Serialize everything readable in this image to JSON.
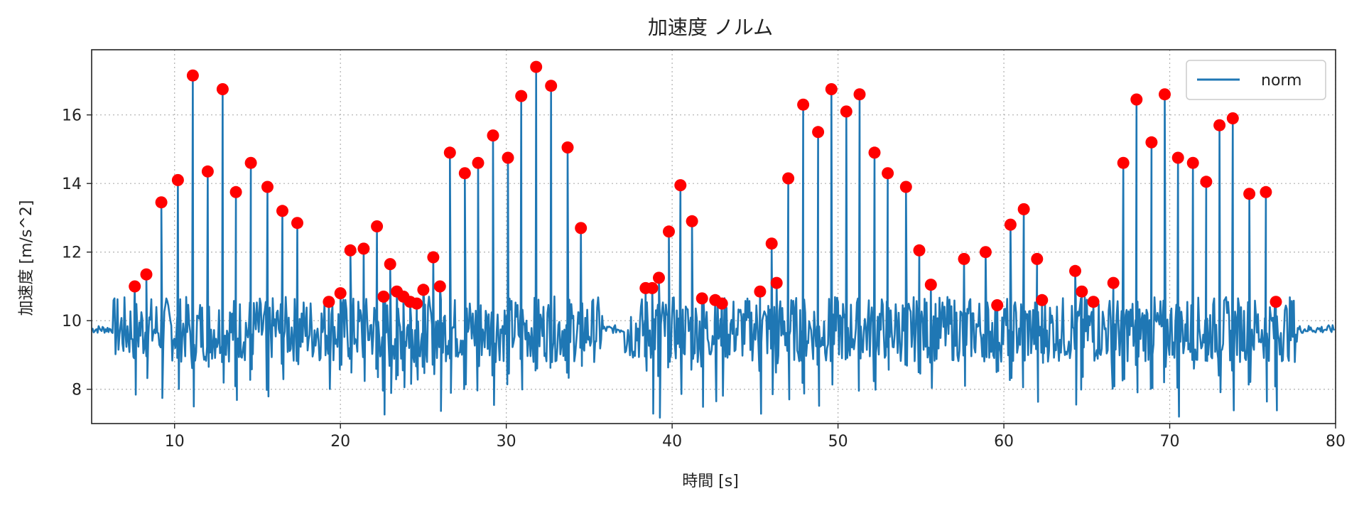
{
  "chart_data": {
    "type": "line",
    "title": "加速度 ノルム",
    "xlabel": "時間 [s]",
    "ylabel": "加速度 [m/s^2]",
    "xlim": [
      5,
      80
    ],
    "ylim": [
      7,
      17.9
    ],
    "xticks": [
      10,
      20,
      30,
      40,
      50,
      60,
      70,
      80
    ],
    "yticks": [
      8,
      10,
      12,
      14,
      16
    ],
    "grid": true,
    "legend_position": "top-right",
    "series": [
      {
        "name": "norm",
        "color": "#1f77b4",
        "style": "line",
        "baseline": 9.75,
        "noise_amplitude": 0.12
      },
      {
        "color": "#ff0000",
        "style": "markers",
        "points": [
          [
            7.6,
            11.0
          ],
          [
            8.3,
            11.35
          ],
          [
            9.2,
            13.45
          ],
          [
            10.2,
            14.1
          ],
          [
            11.1,
            17.15
          ],
          [
            12.0,
            14.35
          ],
          [
            12.9,
            16.75
          ],
          [
            13.7,
            13.75
          ],
          [
            14.6,
            14.6
          ],
          [
            15.6,
            13.9
          ],
          [
            16.5,
            13.2
          ],
          [
            17.4,
            12.85
          ],
          [
            19.3,
            10.55
          ],
          [
            20.0,
            10.8
          ],
          [
            20.6,
            12.05
          ],
          [
            21.4,
            12.1
          ],
          [
            22.2,
            12.75
          ],
          [
            22.6,
            10.7
          ],
          [
            23.0,
            11.65
          ],
          [
            23.4,
            10.85
          ],
          [
            23.8,
            10.7
          ],
          [
            24.2,
            10.55
          ],
          [
            24.6,
            10.5
          ],
          [
            25.0,
            10.9
          ],
          [
            25.6,
            11.85
          ],
          [
            26.0,
            11.0
          ],
          [
            26.6,
            14.9
          ],
          [
            27.5,
            14.3
          ],
          [
            28.3,
            14.6
          ],
          [
            29.2,
            15.4
          ],
          [
            30.1,
            14.75
          ],
          [
            30.9,
            16.55
          ],
          [
            31.8,
            17.4
          ],
          [
            32.7,
            16.85
          ],
          [
            33.7,
            15.05
          ],
          [
            34.5,
            12.7
          ],
          [
            38.4,
            10.95
          ],
          [
            38.8,
            10.95
          ],
          [
            39.2,
            11.25
          ],
          [
            39.8,
            12.6
          ],
          [
            40.5,
            13.95
          ],
          [
            41.2,
            12.9
          ],
          [
            41.8,
            10.65
          ],
          [
            42.6,
            10.6
          ],
          [
            43.0,
            10.5
          ],
          [
            45.3,
            10.85
          ],
          [
            46.0,
            12.25
          ],
          [
            46.3,
            11.1
          ],
          [
            47.0,
            14.15
          ],
          [
            47.9,
            16.3
          ],
          [
            48.8,
            15.5
          ],
          [
            49.6,
            16.75
          ],
          [
            50.5,
            16.1
          ],
          [
            51.3,
            16.6
          ],
          [
            52.2,
            14.9
          ],
          [
            53.0,
            14.3
          ],
          [
            54.1,
            13.9
          ],
          [
            54.9,
            12.05
          ],
          [
            55.6,
            11.05
          ],
          [
            57.6,
            11.8
          ],
          [
            58.9,
            12.0
          ],
          [
            59.6,
            10.45
          ],
          [
            60.4,
            12.8
          ],
          [
            61.2,
            13.25
          ],
          [
            62.0,
            11.8
          ],
          [
            62.3,
            10.6
          ],
          [
            64.3,
            11.45
          ],
          [
            64.7,
            10.85
          ],
          [
            65.4,
            10.55
          ],
          [
            66.6,
            11.1
          ],
          [
            67.2,
            14.6
          ],
          [
            68.0,
            16.45
          ],
          [
            68.9,
            15.2
          ],
          [
            69.7,
            16.6
          ],
          [
            70.5,
            14.75
          ],
          [
            71.4,
            14.6
          ],
          [
            72.2,
            14.05
          ],
          [
            73.0,
            15.7
          ],
          [
            73.8,
            15.9
          ],
          [
            74.8,
            13.7
          ],
          [
            75.8,
            13.75
          ],
          [
            76.4,
            10.55
          ]
        ]
      }
    ]
  }
}
